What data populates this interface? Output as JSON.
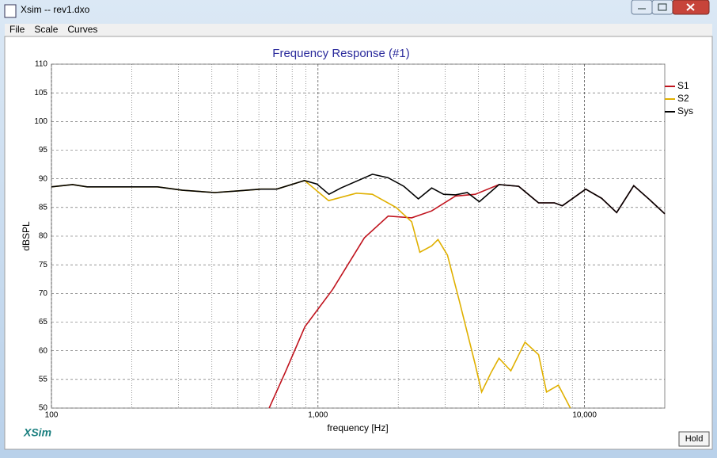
{
  "window": {
    "title": "Xsim -- rev1.dxo",
    "menu": [
      "File",
      "Scale",
      "Curves"
    ],
    "brand": "XSim",
    "hold_button": "Hold"
  },
  "chart_data": {
    "type": "line",
    "title": "Frequency Response (#1)",
    "x_label": "frequency [Hz]",
    "y_label": "dBSPL",
    "x_scale": "log",
    "grid": true,
    "legend": "right",
    "xlim": [
      100,
      20000
    ],
    "xticks": [
      {
        "value": 100,
        "label": "100"
      },
      {
        "value": 1000,
        "label": "1,000"
      },
      {
        "value": 10000,
        "label": "10,000"
      }
    ],
    "x_minor_ticks": [
      200,
      300,
      400,
      500,
      600,
      700,
      800,
      900,
      2000,
      3000,
      4000,
      5000,
      6000,
      7000,
      8000,
      9000
    ],
    "ylim": [
      50,
      110
    ],
    "yticks": [
      50,
      55,
      60,
      65,
      70,
      75,
      80,
      85,
      90,
      95,
      100,
      105,
      110
    ],
    "series": [
      {
        "name": "S1",
        "color": "#c0141e",
        "x": [
          656,
          753,
          893,
          1135,
          1493,
          1834,
          2247,
          2669,
          3279,
          3890,
          4780,
          5660,
          6720,
          7710,
          8260,
          10100,
          11600,
          13200,
          15300,
          17500,
          20000
        ],
        "values": [
          50,
          56.2,
          64.2,
          70.7,
          79.7,
          83.5,
          83.2,
          84.4,
          87.0,
          87.3,
          89.0,
          88.7,
          85.8,
          85.8,
          85.3,
          88.2,
          86.6,
          84.1,
          88.8,
          86.4,
          83.9
        ]
      },
      {
        "name": "S2",
        "color": "#e0b000",
        "x": [
          100,
          120,
          136,
          250,
          310,
          410,
          500,
          610,
          700,
          890,
          1097,
          1394,
          1599,
          1963,
          2247,
          2410,
          2669,
          2820,
          3060,
          3390,
          3890,
          4110,
          4460,
          4775,
          5290,
          5980,
          6725,
          7200,
          7980,
          8850
        ],
        "values": [
          88.6,
          89.0,
          88.6,
          88.6,
          88.0,
          87.6,
          87.9,
          88.2,
          88.2,
          89.7,
          86.2,
          87.5,
          87.3,
          85.0,
          82.5,
          77.2,
          78.3,
          79.4,
          76.7,
          68.7,
          57.6,
          52.8,
          56.2,
          58.7,
          56.5,
          61.5,
          59.3,
          52.8,
          54.0,
          50
        ]
      },
      {
        "name": "Sys",
        "color": "#000000",
        "x": [
          100,
          120,
          136,
          250,
          310,
          410,
          500,
          610,
          700,
          890,
          990,
          1100,
          1220,
          1600,
          1830,
          2100,
          2380,
          2670,
          2960,
          3280,
          3630,
          4030,
          4780,
          5660,
          6720,
          7710,
          8260,
          10100,
          11600,
          13200,
          15300,
          17500,
          20000
        ],
        "values": [
          88.6,
          89.0,
          88.6,
          88.6,
          88.0,
          87.6,
          87.9,
          88.2,
          88.2,
          89.7,
          89.1,
          87.3,
          88.4,
          90.8,
          90.2,
          88.7,
          86.5,
          88.4,
          87.3,
          87.2,
          87.6,
          86.0,
          89.0,
          88.7,
          85.8,
          85.8,
          85.3,
          88.2,
          86.6,
          84.1,
          88.8,
          86.4,
          83.9
        ]
      }
    ]
  }
}
